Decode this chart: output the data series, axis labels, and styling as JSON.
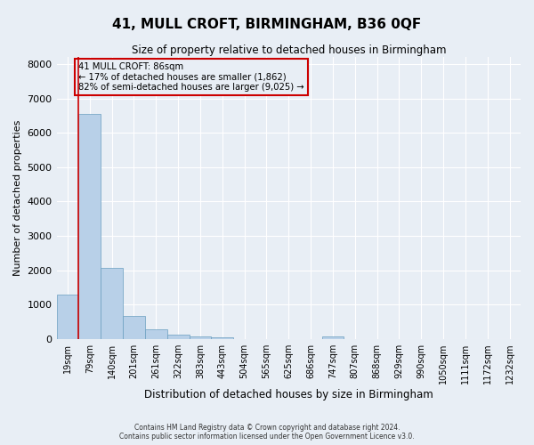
{
  "title": "41, MULL CROFT, BIRMINGHAM, B36 0QF",
  "subtitle": "Size of property relative to detached houses in Birmingham",
  "xlabel": "Distribution of detached houses by size in Birmingham",
  "ylabel": "Number of detached properties",
  "footnote1": "Contains HM Land Registry data © Crown copyright and database right 2024.",
  "footnote2": "Contains public sector information licensed under the Open Government Licence v3.0.",
  "bar_labels": [
    "19sqm",
    "79sqm",
    "140sqm",
    "201sqm",
    "261sqm",
    "322sqm",
    "383sqm",
    "443sqm",
    "504sqm",
    "565sqm",
    "625sqm",
    "686sqm",
    "747sqm",
    "807sqm",
    "868sqm",
    "929sqm",
    "990sqm",
    "1050sqm",
    "1111sqm",
    "1172sqm",
    "1232sqm"
  ],
  "bar_values": [
    1300,
    6550,
    2080,
    680,
    290,
    135,
    75,
    50,
    0,
    0,
    0,
    0,
    70,
    0,
    0,
    0,
    0,
    0,
    0,
    0,
    0
  ],
  "bar_color": "#b8d0e8",
  "bar_edge_color": "#6a9ec0",
  "vline_color": "#cc0000",
  "annotation_box_text": "41 MULL CROFT: 86sqm\n← 17% of detached houses are smaller (1,862)\n82% of semi-detached houses are larger (9,025) →",
  "box_edge_color": "#cc0000",
  "ylim": [
    0,
    8200
  ],
  "background_color": "#e8eef5",
  "grid_color": "#ffffff"
}
